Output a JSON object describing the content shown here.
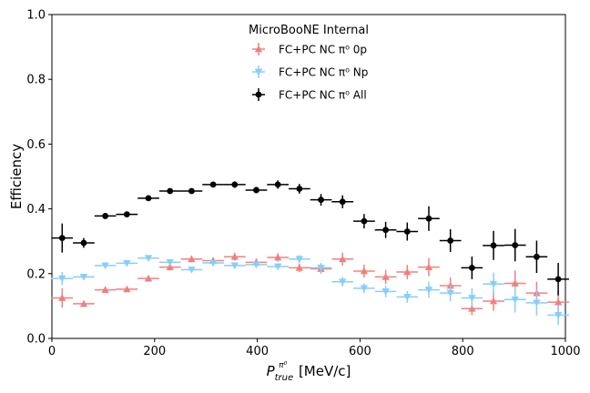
{
  "chart_data": {
    "type": "scatter",
    "title": "",
    "xlabel": "P_true^π⁰ [MeV/c]",
    "xlabel_parts": {
      "base": "P",
      "sub": "true",
      "sup": "π⁰",
      "unit": "[MeV/c]"
    },
    "ylabel": "Efficiency",
    "xlim": [
      0,
      1000
    ],
    "ylim": [
      0,
      1.0
    ],
    "xticks": [
      0,
      200,
      400,
      600,
      800,
      1000
    ],
    "xtick_labels": [
      "0",
      "200",
      "400",
      "600",
      "800",
      "1000"
    ],
    "yticks": [
      0,
      0.2,
      0.4,
      0.6,
      0.8,
      1.0
    ],
    "ytick_labels": [
      "0.0",
      "0.2",
      "0.4",
      "0.6",
      "0.8",
      "1.0"
    ],
    "grid": false,
    "legend": {
      "title": "MicroBooNE Internal",
      "placement": "top-center",
      "entries": [
        "FC+PC NC π⁰ 0p",
        "FC+PC NC π⁰ Np",
        "FC+PC NC π⁰ All"
      ]
    },
    "x": [
      20,
      62,
      104,
      146,
      188,
      230,
      272,
      314,
      356,
      398,
      440,
      482,
      524,
      566,
      608,
      650,
      692,
      734,
      776,
      818,
      860,
      902,
      944,
      986
    ],
    "x_halfwidth": 21,
    "series": [
      {
        "name": "FC+PC NC π⁰ 0p",
        "marker": "triangle-up",
        "color": "#f08080",
        "values": [
          0.125,
          0.107,
          0.15,
          0.152,
          0.185,
          0.22,
          0.245,
          0.24,
          0.252,
          0.235,
          0.25,
          0.218,
          0.215,
          0.245,
          0.208,
          0.19,
          0.205,
          0.22,
          0.163,
          0.092,
          0.115,
          0.17,
          0.14,
          0.112
        ],
        "errors": [
          0.03,
          0.01,
          0.008,
          0.008,
          0.01,
          0.01,
          0.01,
          0.01,
          0.012,
          0.012,
          0.013,
          0.013,
          0.015,
          0.02,
          0.02,
          0.022,
          0.022,
          0.028,
          0.025,
          0.02,
          0.03,
          0.04,
          0.035,
          0.035
        ]
      },
      {
        "name": "FC+PC NC π⁰ Np",
        "marker": "triangle-down",
        "color": "#87cefa",
        "values": [
          0.185,
          0.19,
          0.225,
          0.232,
          0.248,
          0.235,
          0.212,
          0.233,
          0.225,
          0.228,
          0.222,
          0.245,
          0.218,
          0.175,
          0.155,
          0.145,
          0.128,
          0.15,
          0.14,
          0.125,
          0.168,
          0.12,
          0.11,
          0.072
        ],
        "errors": [
          0.02,
          0.01,
          0.008,
          0.008,
          0.008,
          0.008,
          0.008,
          0.008,
          0.008,
          0.01,
          0.01,
          0.012,
          0.015,
          0.015,
          0.015,
          0.018,
          0.018,
          0.025,
          0.025,
          0.03,
          0.035,
          0.04,
          0.04,
          0.03
        ]
      },
      {
        "name": "FC+PC NC π⁰ All",
        "marker": "circle",
        "color": "#000000",
        "values": [
          0.31,
          0.295,
          0.378,
          0.383,
          0.433,
          0.455,
          0.455,
          0.475,
          0.475,
          0.458,
          0.475,
          0.462,
          0.428,
          0.422,
          0.362,
          0.335,
          0.33,
          0.37,
          0.302,
          0.218,
          0.287,
          0.288,
          0.252,
          0.183
        ],
        "errors": [
          0.045,
          0.015,
          0.008,
          0.008,
          0.008,
          0.008,
          0.008,
          0.008,
          0.01,
          0.01,
          0.013,
          0.015,
          0.018,
          0.02,
          0.022,
          0.025,
          0.028,
          0.038,
          0.035,
          0.035,
          0.045,
          0.05,
          0.05,
          0.05
        ]
      }
    ]
  }
}
